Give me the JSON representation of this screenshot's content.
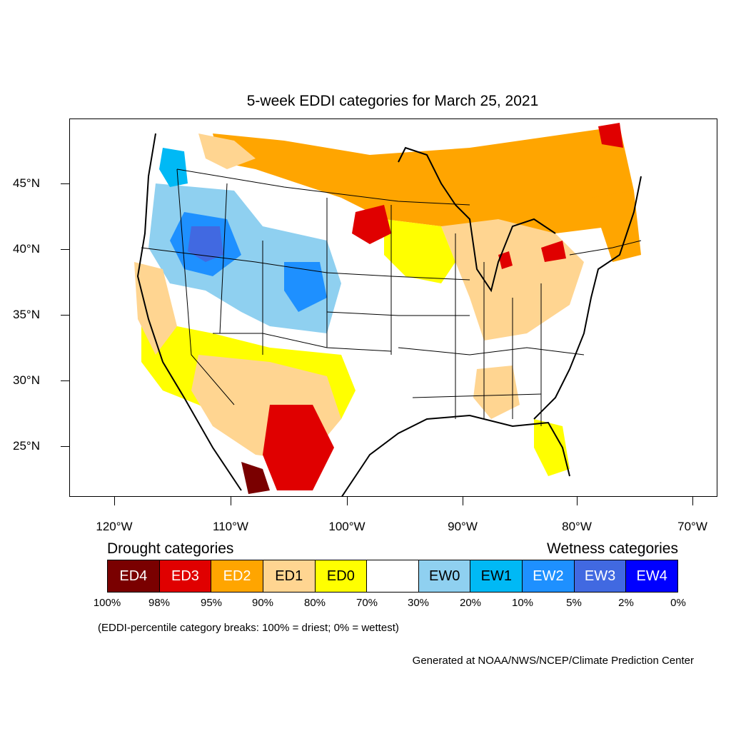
{
  "title": "5-week EDDI categories for March 25, 2021",
  "map": {
    "lat_labels": [
      "45°N",
      "40°N",
      "35°N",
      "30°N",
      "25°N"
    ],
    "lon_labels": [
      "120°W",
      "110°W",
      "100°W",
      "90°W",
      "80°W",
      "70°W"
    ],
    "colors": {
      "ED4": "#7a0000",
      "ED3": "#e00000",
      "ED2": "#ffa500",
      "ED1": "#ffd591",
      "ED0": "#ffff00",
      "neutral": "#ffffff",
      "EW0": "#8fd0f0",
      "EW1": "#00b9f5",
      "EW2": "#1e90ff",
      "EW3": "#4169e1",
      "EW4": "#0000ff"
    }
  },
  "legend": {
    "drought_heading": "Drought categories",
    "wetness_heading": "Wetness categories",
    "boxes": [
      {
        "label": "ED4",
        "color": "#7a0000",
        "text_color": "#ffffff"
      },
      {
        "label": "ED3",
        "color": "#e00000",
        "text_color": "#ffffff"
      },
      {
        "label": "ED2",
        "color": "#ffa500",
        "text_color": "#ffffff"
      },
      {
        "label": "ED1",
        "color": "#ffd591",
        "text_color": "#000000"
      },
      {
        "label": "ED0",
        "color": "#ffff00",
        "text_color": "#000000"
      },
      {
        "label": "",
        "color": "#ffffff",
        "text_color": "#000000"
      },
      {
        "label": "EW0",
        "color": "#8fd0f0",
        "text_color": "#000000"
      },
      {
        "label": "EW1",
        "color": "#00b9f5",
        "text_color": "#000000"
      },
      {
        "label": "EW2",
        "color": "#1e90ff",
        "text_color": "#ffffff"
      },
      {
        "label": "EW3",
        "color": "#4169e1",
        "text_color": "#ffffff"
      },
      {
        "label": "EW4",
        "color": "#0000ff",
        "text_color": "#ffffff"
      }
    ],
    "breaks": [
      "100%",
      "98%",
      "95%",
      "90%",
      "80%",
      "70%",
      "30%",
      "20%",
      "10%",
      "5%",
      "2%",
      "0%"
    ],
    "note": "(EDDI-percentile category breaks: 100% = driest; 0% = wettest)"
  },
  "credit": "Generated at NOAA/NWS/NCEP/Climate Prediction Center"
}
